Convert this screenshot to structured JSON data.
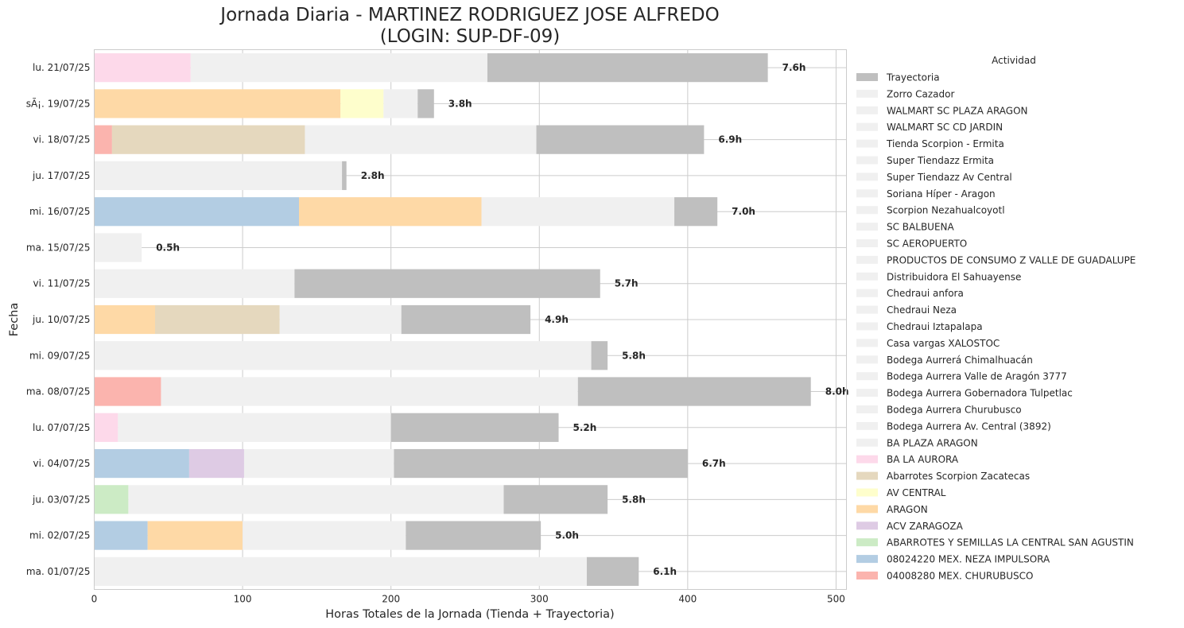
{
  "chart_data": {
    "type": "bar",
    "orientation": "horizontal",
    "stacked": true,
    "title": "Jornada Diaria - MARTINEZ RODRIGUEZ JOSE ALFREDO",
    "subtitle": "(LOGIN: SUP-DF-09)",
    "xlabel": "Horas Totales de la Jornada (Tienda + Trayectoria)",
    "ylabel": "Fecha",
    "xlim": [
      0,
      507
    ],
    "xticks": [
      0,
      100,
      200,
      300,
      400,
      500
    ],
    "grid": true,
    "legend_title": "Actividad",
    "legend_position": "right",
    "categories": [
      "lu. 21/07/25",
      "sÃ¡. 19/07/25",
      "vi. 18/07/25",
      "ju. 17/07/25",
      "mi. 16/07/25",
      "ma. 15/07/25",
      "vi. 11/07/25",
      "ju. 10/07/25",
      "mi. 09/07/25",
      "ma. 08/07/25",
      "lu. 07/07/25",
      "vi. 04/07/25",
      "ju. 03/07/25",
      "mi. 02/07/25",
      "ma. 01/07/25"
    ],
    "bar_labels": [
      "7.6h",
      "3.8h",
      "6.9h",
      "2.8h",
      "7.0h",
      "0.5h",
      "5.7h",
      "4.9h",
      "5.8h",
      "8.0h",
      "5.2h",
      "6.7h",
      "5.8h",
      "5.0h",
      "6.1h"
    ],
    "bars": [
      {
        "segments": [
          {
            "s": "BA LA AURORA",
            "v": 65
          },
          {
            "s": "Zorro Cazador",
            "v": 200
          },
          {
            "s": "Trayectoria",
            "v": 189
          }
        ]
      },
      {
        "segments": [
          {
            "s": "ARAGON",
            "v": 166
          },
          {
            "s": "AV CENTRAL",
            "v": 29
          },
          {
            "s": "Zorro Cazador",
            "v": 23
          },
          {
            "s": "Trayectoria",
            "v": 11
          }
        ]
      },
      {
        "segments": [
          {
            "s": "04008280 MEX. CHURUBUSCO",
            "v": 12
          },
          {
            "s": "Abarrotes Scorpion Zacatecas",
            "v": 130
          },
          {
            "s": "Zorro Cazador",
            "v": 156
          },
          {
            "s": "Trayectoria",
            "v": 113
          }
        ]
      },
      {
        "segments": [
          {
            "s": "Zorro Cazador",
            "v": 167
          },
          {
            "s": "Trayectoria",
            "v": 3
          }
        ]
      },
      {
        "segments": [
          {
            "s": "08024220 MEX. NEZA IMPULSORA",
            "v": 138
          },
          {
            "s": "ARAGON",
            "v": 123
          },
          {
            "s": "Zorro Cazador",
            "v": 130
          },
          {
            "s": "Trayectoria",
            "v": 29
          }
        ]
      },
      {
        "segments": [
          {
            "s": "Zorro Cazador",
            "v": 32
          }
        ]
      },
      {
        "segments": [
          {
            "s": "Zorro Cazador",
            "v": 135
          },
          {
            "s": "Trayectoria",
            "v": 206
          }
        ]
      },
      {
        "segments": [
          {
            "s": "ARAGON",
            "v": 41
          },
          {
            "s": "Abarrotes Scorpion Zacatecas",
            "v": 84
          },
          {
            "s": "Zorro Cazador",
            "v": 82
          },
          {
            "s": "Trayectoria",
            "v": 87
          }
        ]
      },
      {
        "segments": [
          {
            "s": "Zorro Cazador",
            "v": 335
          },
          {
            "s": "Trayectoria",
            "v": 11
          }
        ]
      },
      {
        "segments": [
          {
            "s": "04008280 MEX. CHURUBUSCO",
            "v": 45
          },
          {
            "s": "Zorro Cazador",
            "v": 281
          },
          {
            "s": "Trayectoria",
            "v": 157
          }
        ]
      },
      {
        "segments": [
          {
            "s": "BA LA AURORA",
            "v": 16
          },
          {
            "s": "Zorro Cazador",
            "v": 184
          },
          {
            "s": "Trayectoria",
            "v": 113
          }
        ]
      },
      {
        "segments": [
          {
            "s": "08024220 MEX. NEZA IMPULSORA",
            "v": 64
          },
          {
            "s": "ACV ZARAGOZA",
            "v": 37
          },
          {
            "s": "Zorro Cazador",
            "v": 101
          },
          {
            "s": "Trayectoria",
            "v": 198
          }
        ]
      },
      {
        "segments": [
          {
            "s": "ABARROTES Y SEMILLAS LA CENTRAL SAN AGUSTIN",
            "v": 23
          },
          {
            "s": "Zorro Cazador",
            "v": 253
          },
          {
            "s": "Trayectoria",
            "v": 70
          }
        ]
      },
      {
        "segments": [
          {
            "s": "08024220 MEX. NEZA IMPULSORA",
            "v": 36
          },
          {
            "s": "ARAGON",
            "v": 64
          },
          {
            "s": "Zorro Cazador",
            "v": 110
          },
          {
            "s": "Trayectoria",
            "v": 91
          }
        ]
      },
      {
        "segments": [
          {
            "s": "Zorro Cazador",
            "v": 332
          },
          {
            "s": "Trayectoria",
            "v": 35
          }
        ]
      }
    ],
    "series": [
      {
        "name": "Trayectoria",
        "color": "#bfbfbf"
      },
      {
        "name": "Zorro Cazador",
        "color": "#f0f0f0"
      },
      {
        "name": "WALMART SC PLAZA ARAGON",
        "color": "#f0f0f0"
      },
      {
        "name": "WALMART SC CD JARDIN",
        "color": "#f0f0f0"
      },
      {
        "name": "Tienda Scorpion - Ermita",
        "color": "#f0f0f0"
      },
      {
        "name": "Super Tiendazz Ermita",
        "color": "#f0f0f0"
      },
      {
        "name": "Super Tiendazz Av Central",
        "color": "#f0f0f0"
      },
      {
        "name": "Soriana Híper - Aragon",
        "color": "#f0f0f0"
      },
      {
        "name": "Scorpion Nezahualcoyotl",
        "color": "#f0f0f0"
      },
      {
        "name": "SC BALBUENA",
        "color": "#f0f0f0"
      },
      {
        "name": "SC AEROPUERTO",
        "color": "#f0f0f0"
      },
      {
        "name": "PRODUCTOS DE CONSUMO Z VALLE DE GUADALUPE",
        "color": "#f0f0f0"
      },
      {
        "name": "Distribuidora El Sahuayense",
        "color": "#f0f0f0"
      },
      {
        "name": "Chedraui anfora",
        "color": "#f0f0f0"
      },
      {
        "name": "Chedraui Neza",
        "color": "#f0f0f0"
      },
      {
        "name": "Chedraui Iztapalapa",
        "color": "#f0f0f0"
      },
      {
        "name": "Casa vargas XALOSTOC",
        "color": "#f0f0f0"
      },
      {
        "name": "Bodega Aurrerá Chimalhuacán",
        "color": "#f0f0f0"
      },
      {
        "name": "Bodega Aurrera Valle de Aragón 3777",
        "color": "#f0f0f0"
      },
      {
        "name": "Bodega Aurrera Gobernadora Tulpetlac",
        "color": "#f0f0f0"
      },
      {
        "name": "Bodega Aurrera Churubusco",
        "color": "#f0f0f0"
      },
      {
        "name": "Bodega Aurrera Av. Central (3892)",
        "color": "#f0f0f0"
      },
      {
        "name": "BA PLAZA ARAGON",
        "color": "#f0f0f0"
      },
      {
        "name": "BA LA AURORA",
        "color": "#fdd9ea"
      },
      {
        "name": "Abarrotes Scorpion Zacatecas",
        "color": "#e5d8be"
      },
      {
        "name": "AV CENTRAL",
        "color": "#fefecc"
      },
      {
        "name": "ARAGON",
        "color": "#fed9a6"
      },
      {
        "name": "ACV ZARAGOZA",
        "color": "#decbe4"
      },
      {
        "name": "ABARROTES Y SEMILLAS LA CENTRAL SAN AGUSTIN",
        "color": "#ccebc5"
      },
      {
        "name": "08024220 MEX. NEZA IMPULSORA",
        "color": "#b3cde3"
      },
      {
        "name": "04008280 MEX. CHURUBUSCO",
        "color": "#fbb4ae"
      }
    ]
  }
}
